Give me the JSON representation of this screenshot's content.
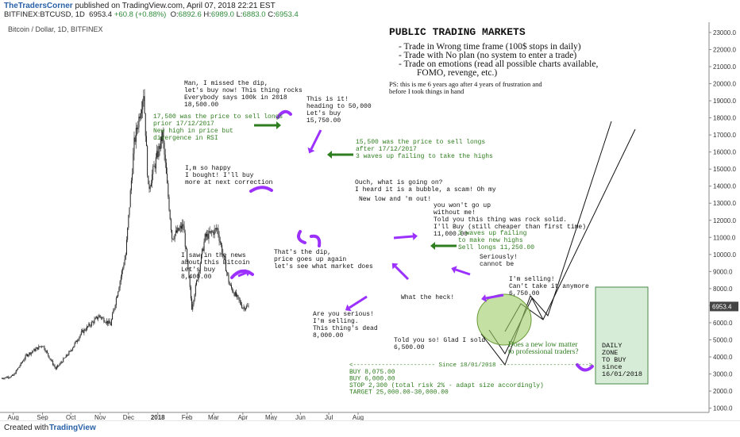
{
  "header": {
    "publisher": "TheTradersCorner",
    "published_text": "published on TradingView.com, April 07, 2018 22:21 EST",
    "symbol": "BITFINEX:BTCUSD, 1D",
    "last": "6953.4",
    "change": "+60.8 (+0.88%)",
    "open_label": "O:",
    "open": "6892.6",
    "high_label": "H:",
    "high": "6989.0",
    "low_label": "L:",
    "low": "6883.0",
    "close_label": "C:",
    "close": "6953.4"
  },
  "footer": {
    "created_with": "Created with",
    "logo_text": "TradingView"
  },
  "colors": {
    "candle": "#222222",
    "annotation_green": "#2e7d1e",
    "arrow_purple": "#9b30ff",
    "zone_fill": "#c8e6c9",
    "zone_border": "#4a8a4a",
    "ellipse_fill": "#9ccc65",
    "price_tag": "#444444"
  },
  "chart_data": {
    "type": "candlestick",
    "pair_label": "Bitcoin / Dollar, 1D, BITFINEX",
    "y_axis_ticks": [
      1000,
      2000,
      3000,
      4000,
      5000,
      6000,
      7000,
      8000,
      9000,
      10000,
      11000,
      12000,
      13000,
      14000,
      15000,
      16000,
      17000,
      18000,
      19000,
      20000,
      21000,
      22000,
      23000
    ],
    "y_axis_ticks_text": [
      "1000.0",
      "2000.0",
      "3000.0",
      "4000.0",
      "5000.0",
      "6000.0",
      "7000.0",
      "8000.0",
      "9000.0",
      "10000.0",
      "11000.0",
      "12000.0",
      "13000.0",
      "14000.0",
      "15000.0",
      "16000.0",
      "17000.0",
      "18000.0",
      "19000.0",
      "20000.0",
      "21000.0",
      "22000.0",
      "23000.0"
    ],
    "x_axis_ticks": [
      "Aug",
      "Sep",
      "Oct",
      "Nov",
      "Dec",
      "2018",
      "Feb",
      "Mar",
      "Apr",
      "May",
      "Jun",
      "Jul",
      "Aug"
    ],
    "last_price_label": "6953.4",
    "ylim": [
      1000,
      23500
    ],
    "series_waypoints": [
      {
        "date": "2017-07-20",
        "close": 2750
      },
      {
        "date": "2017-08-01",
        "close": 2900
      },
      {
        "date": "2017-08-15",
        "close": 4100
      },
      {
        "date": "2017-09-01",
        "close": 4700
      },
      {
        "date": "2017-09-15",
        "close": 3300
      },
      {
        "date": "2017-09-30",
        "close": 4300
      },
      {
        "date": "2017-10-12",
        "close": 5400
      },
      {
        "date": "2017-10-31",
        "close": 6400
      },
      {
        "date": "2017-11-12",
        "close": 5900
      },
      {
        "date": "2017-11-28",
        "close": 10000
      },
      {
        "date": "2017-12-07",
        "close": 16500
      },
      {
        "date": "2017-12-17",
        "close": 19500
      },
      {
        "date": "2017-12-22",
        "close": 13800
      },
      {
        "date": "2018-01-06",
        "close": 17000
      },
      {
        "date": "2018-01-16",
        "close": 11000
      },
      {
        "date": "2018-01-28",
        "close": 11700
      },
      {
        "date": "2018-02-06",
        "close": 6900
      },
      {
        "date": "2018-02-20",
        "close": 11000
      },
      {
        "date": "2018-03-05",
        "close": 11500
      },
      {
        "date": "2018-03-18",
        "close": 8200
      },
      {
        "date": "2018-04-01",
        "close": 6900
      },
      {
        "date": "2018-04-07",
        "close": 6953.4
      }
    ]
  },
  "annotations": {
    "title": "PUBLIC TRADING MARKETS",
    "bullets": [
      "- Trade in Wrong time frame (100$ stops in daily)",
      "- Trade with No plan (no system to enter a trade)",
      "- Trade on emotions (read all possible charts available,",
      "FOMO, revenge, etc.)"
    ],
    "ps_lines": [
      "PS: this is me 6 years ago after 4 years of frustration and",
      "before I took things in hand"
    ],
    "news": [
      "I saw in the news",
      "about this Bitcoin",
      "Let's buy",
      "8,400.00"
    ],
    "happy": [
      "I,m so happy",
      "I bought! I'll buy",
      "more at next correction"
    ],
    "missed": [
      "Man, I missed the dip,",
      "let's buy now! This thing rocks",
      "Everybody says 100k in 2018",
      "18,500.00"
    ],
    "sell17500": [
      "17,500 was the price to sell longs",
      "prior 17/12/2017",
      "New high in price but",
      "divergence in RSI"
    ],
    "thisisit": [
      "This is it!",
      "heading to 50,000",
      "Let's buy",
      "15,750.00"
    ],
    "sell15500": [
      "15,500 was the price to sell longs",
      "after 17/12/2017",
      "3 waves up failing to take the highs"
    ],
    "dip": [
      "That's the dip,",
      "price goes up again",
      "let's see what market does"
    ],
    "ouch": [
      "Ouch, what is going on?",
      "I heard it is a bubble, a scam! Oh my"
    ],
    "newlow": [
      "New low and 'm out!"
    ],
    "wontgo": [
      "you won't go up",
      "without me!",
      "Told you this thing was rock solid.",
      "I'll Buy (still cheaper than first time)",
      "11,000.00"
    ],
    "waves3": [
      "3 waves up failing",
      "to make new highs",
      "Sell longs 11,250.00"
    ],
    "seriously": [
      "Seriously!",
      "cannot be"
    ],
    "selling": [
      "I'm selling!",
      "Can't take it anymore",
      "6,750.00"
    ],
    "heck": [
      "What the heck!"
    ],
    "areyou": [
      "Are you serious!",
      "I'm selling.",
      "This thing's dead",
      "8,000.00"
    ],
    "toldyou": [
      "Told you so! Glad I sold",
      "6,500.00"
    ],
    "newlowq": [
      "Does a new low matter",
      "to professional traders?"
    ],
    "daily_zone": [
      "DAILY",
      "ZONE",
      "TO BUY",
      "since",
      "16/01/2018"
    ],
    "plan": [
      "<----------------------- Since 18/01/2018 ------------------------->",
      "BUY 8,075.00",
      "BUY 6,000.00",
      "STOP 2,300 (total risk 2% - adapt size accordingly)",
      "TARGET 25,000.00-30,000.00"
    ]
  }
}
